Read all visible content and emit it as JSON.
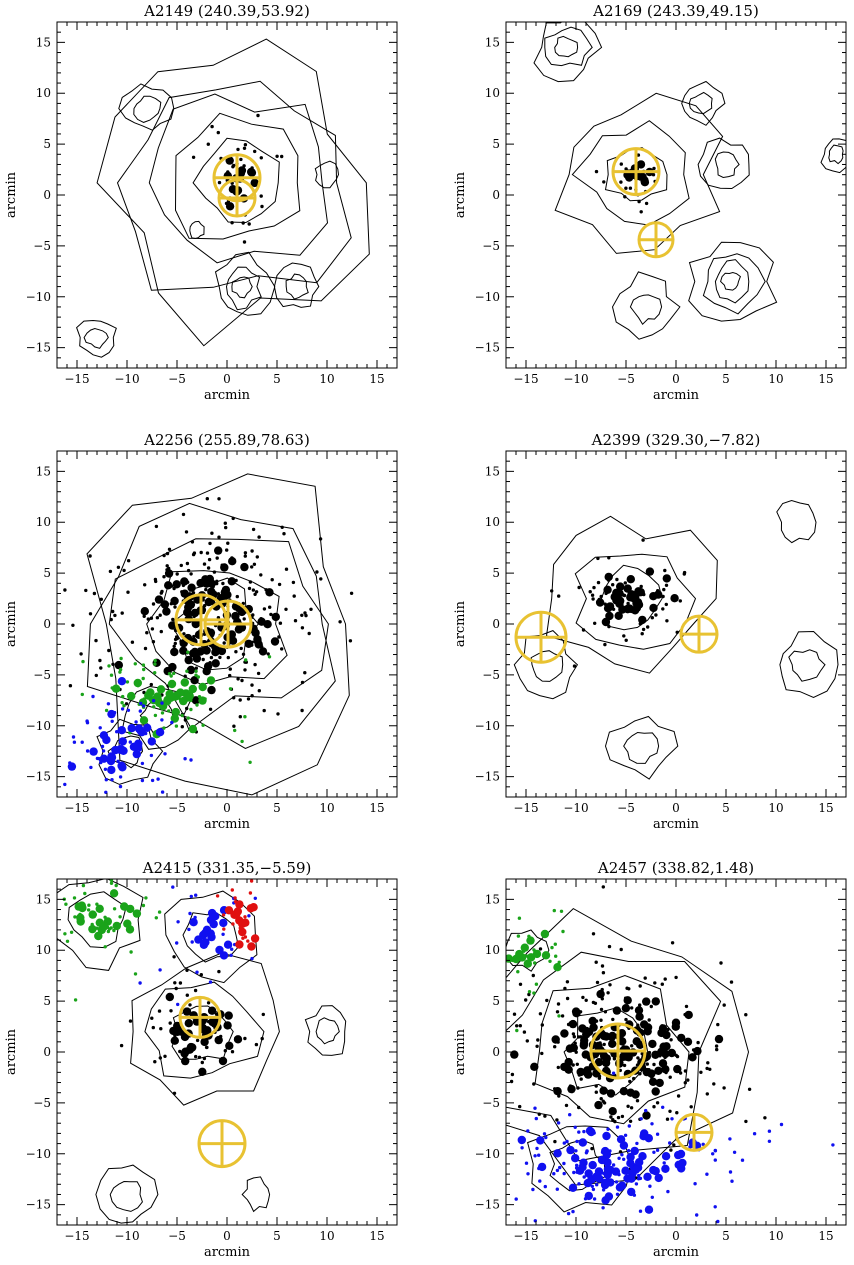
{
  "figure": {
    "rows": 3,
    "cols": 2
  },
  "chart_data": [
    {
      "type": "scatter",
      "title": "A2149",
      "coords": "(240.39,53.92)",
      "xlabel": "arcmin",
      "ylabel": "arcmin",
      "xlim": [
        -17,
        17
      ],
      "ylim": [
        -17,
        17
      ],
      "xticks": [
        -15,
        -10,
        -5,
        0,
        5,
        10,
        15
      ],
      "yticks": [
        -15,
        -10,
        -5,
        0,
        5,
        10,
        15
      ],
      "marker_color": "#e8c232",
      "markers": [
        {
          "x": 1.0,
          "y": 1.7,
          "r": 2.3
        },
        {
          "x": 1.0,
          "y": -0.3,
          "r": 1.8
        }
      ],
      "groups": [
        {
          "color": "#000000",
          "center": [
            1.0,
            1.5
          ],
          "spread": [
            1.8,
            2.5
          ],
          "n_small": 35,
          "n_big": 14
        }
      ],
      "contours": [
        {
          "center": [
            1,
            1.2
          ],
          "radii": [
            4,
            6,
            8.5,
            11.5,
            14
          ]
        },
        {
          "center": [
            -8,
            8.5
          ],
          "radii": [
            1.2,
            2.2
          ]
        },
        {
          "center": [
            -13,
            -14
          ],
          "radii": [
            1,
            2
          ]
        },
        {
          "center": [
            1.5,
            -9
          ],
          "radii": [
            1,
            2,
            3.2
          ]
        },
        {
          "center": [
            7,
            -9
          ],
          "radii": [
            1.2,
            2.2
          ]
        },
        {
          "center": [
            -3,
            -3.5
          ],
          "radii": [
            0.8
          ]
        },
        {
          "center": [
            10,
            2
          ],
          "radii": [
            1.2
          ]
        }
      ]
    },
    {
      "type": "scatter",
      "title": "A2169",
      "coords": "(243.39,49.15)",
      "xlabel": "arcmin",
      "ylabel": "arcmin",
      "xlim": [
        -17,
        17
      ],
      "ylim": [
        -17,
        17
      ],
      "xticks": [
        -15,
        -10,
        -5,
        0,
        5,
        10,
        15
      ],
      "yticks": [
        -15,
        -10,
        -5,
        0,
        5,
        10,
        15
      ],
      "marker_color": "#e8c232",
      "markers": [
        {
          "x": -4.0,
          "y": 2.3,
          "r": 2.3
        },
        {
          "x": -2.0,
          "y": -4.4,
          "r": 1.7
        }
      ],
      "groups": [
        {
          "color": "#000000",
          "center": [
            -4.3,
            2.0
          ],
          "spread": [
            1.7,
            1.5
          ],
          "n_small": 25,
          "n_big": 10
        }
      ],
      "contours": [
        {
          "center": [
            -4,
            2
          ],
          "radii": [
            3,
            5,
            7.5
          ]
        },
        {
          "center": [
            -11,
            14.5
          ],
          "radii": [
            1,
            2,
            3
          ]
        },
        {
          "center": [
            2.5,
            9
          ],
          "radii": [
            1,
            2
          ]
        },
        {
          "center": [
            16,
            4
          ],
          "radii": [
            0.8,
            1.6
          ]
        },
        {
          "center": [
            5.5,
            -8.5
          ],
          "radii": [
            1,
            2,
            3,
            4
          ]
        },
        {
          "center": [
            -3,
            -11
          ],
          "radii": [
            1.5,
            3
          ]
        },
        {
          "center": [
            5,
            3
          ],
          "radii": [
            1.2,
            2.4
          ]
        }
      ]
    },
    {
      "type": "scatter",
      "title": "A2256",
      "coords": "(255.89,78.63)",
      "xlabel": "arcmin",
      "ylabel": "arcmin",
      "xlim": [
        -17,
        17
      ],
      "ylim": [
        -17,
        17
      ],
      "xticks": [
        -15,
        -10,
        -5,
        0,
        5,
        10,
        15
      ],
      "yticks": [
        -15,
        -10,
        -5,
        0,
        5,
        10,
        15
      ],
      "marker_color": "#e8c232",
      "markers": [
        {
          "x": -2.6,
          "y": 0.4,
          "r": 2.5
        },
        {
          "x": 0.1,
          "y": 0.0,
          "r": 2.3
        }
      ],
      "groups": [
        {
          "color": "#000000",
          "center": [
            -2.0,
            0.5
          ],
          "spread": [
            5.5,
            5.0
          ],
          "n_small": 260,
          "n_big": 110
        },
        {
          "color": "#1aa31a",
          "center": [
            -6.0,
            -7.5
          ],
          "spread": [
            4.0,
            2.5
          ],
          "n_small": 60,
          "n_big": 35
        },
        {
          "color": "#1010f0",
          "center": [
            -10.0,
            -12.0
          ],
          "spread": [
            3.5,
            2.8
          ],
          "n_small": 60,
          "n_big": 30
        }
      ],
      "contours": [
        {
          "center": [
            -1,
            0
          ],
          "radii": [
            4,
            6.5,
            9,
            12,
            15
          ]
        },
        {
          "center": [
            -7,
            -9
          ],
          "radii": [
            1.5,
            3
          ]
        },
        {
          "center": [
            -10,
            -12.5
          ],
          "radii": [
            1.5,
            3
          ]
        }
      ]
    },
    {
      "type": "scatter",
      "title": "A2399",
      "coords": "(329.30,-7.82)",
      "xlabel": "arcmin",
      "ylabel": "arcmin",
      "xlim": [
        -17,
        17
      ],
      "ylim": [
        -17,
        17
      ],
      "xticks": [
        -15,
        -10,
        -5,
        0,
        5,
        10,
        15
      ],
      "yticks": [
        -15,
        -10,
        -5,
        0,
        5,
        10,
        15
      ],
      "marker_color": "#e8c232",
      "markers": [
        {
          "x": -13.5,
          "y": -1.3,
          "r": 2.5
        },
        {
          "x": 2.3,
          "y": -1.0,
          "r": 1.8
        }
      ],
      "groups": [
        {
          "color": "#000000",
          "center": [
            -4.5,
            2.5
          ],
          "spread": [
            3.0,
            2.2
          ],
          "n_small": 60,
          "n_big": 40
        }
      ],
      "contours": [
        {
          "center": [
            -4.5,
            2.5
          ],
          "radii": [
            3,
            5,
            7.5
          ]
        },
        {
          "center": [
            -3.5,
            -12
          ],
          "radii": [
            1.5,
            3
          ]
        },
        {
          "center": [
            13,
            -4
          ],
          "radii": [
            1.5,
            3
          ]
        },
        {
          "center": [
            -13,
            -4
          ],
          "radii": [
            1.5,
            3
          ]
        },
        {
          "center": [
            12,
            10
          ],
          "radii": [
            2
          ]
        }
      ]
    },
    {
      "type": "scatter",
      "title": "A2415",
      "coords": "(331.35,-5.59)",
      "xlabel": "arcmin",
      "ylabel": "arcmin",
      "xlim": [
        -17,
        17
      ],
      "ylim": [
        -17,
        17
      ],
      "xticks": [
        -15,
        -10,
        -5,
        0,
        5,
        10,
        15
      ],
      "yticks": [
        -15,
        -10,
        -5,
        0,
        5,
        10,
        15
      ],
      "marker_color": "#e8c232",
      "markers": [
        {
          "x": -2.7,
          "y": 3.4,
          "r": 2.0
        },
        {
          "x": -0.5,
          "y": -9.0,
          "r": 2.3
        }
      ],
      "groups": [
        {
          "color": "#000000",
          "center": [
            -2.5,
            2.0
          ],
          "spread": [
            3.0,
            3.0
          ],
          "n_small": 50,
          "n_big": 40
        },
        {
          "color": "#1aa31a",
          "center": [
            -13.0,
            12.5
          ],
          "spread": [
            3.0,
            2.5
          ],
          "n_small": 40,
          "n_big": 20
        },
        {
          "color": "#1010f0",
          "center": [
            -2.0,
            11.5
          ],
          "spread": [
            2.5,
            2.5
          ],
          "n_small": 25,
          "n_big": 18
        },
        {
          "color": "#e01010",
          "center": [
            1.5,
            13.0
          ],
          "spread": [
            1.5,
            2.0
          ],
          "n_small": 15,
          "n_big": 14
        }
      ],
      "contours": [
        {
          "center": [
            -2.5,
            2
          ],
          "radii": [
            3,
            5,
            7.5
          ]
        },
        {
          "center": [
            -1.5,
            11.5
          ],
          "radii": [
            2.5,
            4.5
          ]
        },
        {
          "center": [
            -13,
            13
          ],
          "radii": [
            2.5,
            4.5
          ]
        },
        {
          "center": [
            -10,
            -14
          ],
          "radii": [
            1.5,
            3
          ]
        },
        {
          "center": [
            10,
            2
          ],
          "radii": [
            1.2,
            2.4
          ]
        },
        {
          "center": [
            3,
            -14
          ],
          "radii": [
            1.5
          ]
        }
      ]
    },
    {
      "type": "scatter",
      "title": "A2457",
      "coords": "(338.82,1.48)",
      "xlabel": "arcmin",
      "ylabel": "arcmin",
      "xlim": [
        -17,
        17
      ],
      "ylim": [
        -17,
        17
      ],
      "xticks": [
        -15,
        -10,
        -5,
        0,
        5,
        10,
        15
      ],
      "yticks": [
        -15,
        -10,
        -5,
        0,
        5,
        10,
        15
      ],
      "marker_color": "#e8c232",
      "markers": [
        {
          "x": -5.8,
          "y": 0.1,
          "r": 2.7
        },
        {
          "x": 1.8,
          "y": -7.9,
          "r": 1.8
        }
      ],
      "groups": [
        {
          "color": "#000000",
          "center": [
            -6.0,
            0.0
          ],
          "spread": [
            6.5,
            4.5
          ],
          "n_small": 230,
          "n_big": 120
        },
        {
          "color": "#1aa31a",
          "center": [
            -14.5,
            10.0
          ],
          "spread": [
            2.5,
            3.0
          ],
          "n_small": 25,
          "n_big": 12
        },
        {
          "color": "#1010f0",
          "center": [
            -6.0,
            -11.0
          ],
          "spread": [
            7.0,
            3.0
          ],
          "n_small": 130,
          "n_big": 70
        }
      ],
      "contours": [
        {
          "center": [
            -7,
            0
          ],
          "radii": [
            4,
            7,
            10,
            13
          ]
        },
        {
          "center": [
            -10,
            -11
          ],
          "radii": [
            2.5,
            4.5
          ]
        },
        {
          "center": [
            -15,
            10
          ],
          "radii": [
            1.8
          ]
        }
      ]
    }
  ]
}
